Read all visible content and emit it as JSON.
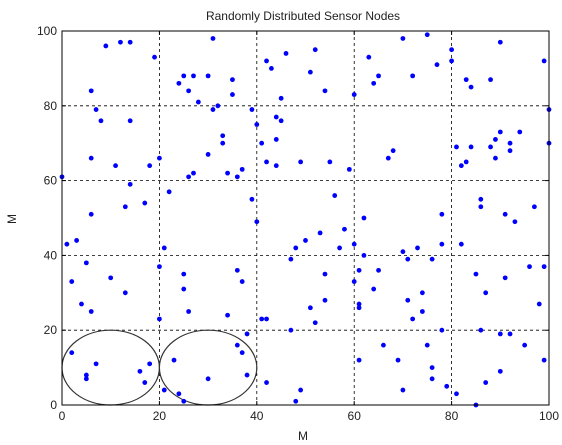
{
  "chart_data": {
    "type": "scatter",
    "title": "Randomly Distributed Sensor Nodes",
    "xlabel": "M",
    "ylabel": "M",
    "xlim": [
      0,
      100
    ],
    "ylim": [
      0,
      100
    ],
    "xticks": [
      0,
      20,
      40,
      60,
      80,
      100
    ],
    "yticks": [
      0,
      20,
      40,
      60,
      80,
      100
    ],
    "grid": true,
    "grid_style": "dashed",
    "marker_color": "#0000ff",
    "annotations": [
      {
        "shape": "circle",
        "cx": 10,
        "cy": 10,
        "r": 10,
        "stroke": "#333333"
      },
      {
        "shape": "circle",
        "cx": 30,
        "cy": 10,
        "r": 10,
        "stroke": "#333333"
      }
    ],
    "points": [
      [
        0,
        61
      ],
      [
        1,
        43
      ],
      [
        2,
        14
      ],
      [
        2,
        33
      ],
      [
        3,
        44
      ],
      [
        4,
        27
      ],
      [
        5,
        8
      ],
      [
        5,
        7
      ],
      [
        5,
        38
      ],
      [
        6,
        84
      ],
      [
        6,
        51
      ],
      [
        6,
        25
      ],
      [
        6,
        66
      ],
      [
        7,
        79
      ],
      [
        7,
        11
      ],
      [
        8,
        76
      ],
      [
        9,
        96
      ],
      [
        10,
        34
      ],
      [
        11,
        64
      ],
      [
        12,
        97
      ],
      [
        13,
        53
      ],
      [
        13,
        30
      ],
      [
        14,
        97
      ],
      [
        14,
        76
      ],
      [
        14,
        59
      ],
      [
        16,
        9
      ],
      [
        17,
        6
      ],
      [
        17,
        54
      ],
      [
        18,
        64
      ],
      [
        18,
        11
      ],
      [
        19,
        93
      ],
      [
        20,
        37
      ],
      [
        20,
        23
      ],
      [
        20,
        66
      ],
      [
        21,
        4
      ],
      [
        21,
        42
      ],
      [
        22,
        57
      ],
      [
        23,
        12
      ],
      [
        24,
        3
      ],
      [
        24,
        86
      ],
      [
        25,
        88
      ],
      [
        25,
        35
      ],
      [
        25,
        31
      ],
      [
        25,
        1
      ],
      [
        26,
        84
      ],
      [
        26,
        61
      ],
      [
        26,
        25
      ],
      [
        27,
        62
      ],
      [
        27,
        88
      ],
      [
        28,
        81
      ],
      [
        30,
        88
      ],
      [
        30,
        7
      ],
      [
        30,
        67
      ],
      [
        31,
        98
      ],
      [
        31,
        79
      ],
      [
        32,
        80
      ],
      [
        33,
        72
      ],
      [
        33,
        70
      ],
      [
        34,
        62
      ],
      [
        34,
        24
      ],
      [
        35,
        87
      ],
      [
        35,
        83
      ],
      [
        36,
        61
      ],
      [
        36,
        36
      ],
      [
        36,
        16
      ],
      [
        37,
        33
      ],
      [
        37,
        14
      ],
      [
        37,
        63
      ],
      [
        38,
        8
      ],
      [
        38,
        19
      ],
      [
        39,
        79
      ],
      [
        39,
        55
      ],
      [
        40,
        75
      ],
      [
        40,
        49
      ],
      [
        41,
        23
      ],
      [
        42,
        23
      ],
      [
        41,
        70
      ],
      [
        42,
        92
      ],
      [
        42,
        65
      ],
      [
        42,
        6
      ],
      [
        43,
        90
      ],
      [
        44,
        64
      ],
      [
        44,
        71
      ],
      [
        44,
        77
      ],
      [
        45,
        82
      ],
      [
        45,
        76
      ],
      [
        46,
        94
      ],
      [
        47,
        39
      ],
      [
        47,
        20
      ],
      [
        48,
        42
      ],
      [
        48,
        1
      ],
      [
        49,
        4
      ],
      [
        49,
        65
      ],
      [
        50,
        44
      ],
      [
        51,
        89
      ],
      [
        51,
        26
      ],
      [
        52,
        95
      ],
      [
        52,
        22
      ],
      [
        53,
        46
      ],
      [
        54,
        28
      ],
      [
        54,
        35
      ],
      [
        54,
        84
      ],
      [
        55,
        65
      ],
      [
        56,
        56
      ],
      [
        57,
        42
      ],
      [
        58,
        47
      ],
      [
        59,
        63
      ],
      [
        60,
        83
      ],
      [
        60,
        43
      ],
      [
        60,
        33
      ],
      [
        61,
        27
      ],
      [
        61,
        26
      ],
      [
        61,
        36
      ],
      [
        61,
        12
      ],
      [
        62,
        40
      ],
      [
        62,
        50
      ],
      [
        63,
        93
      ],
      [
        64,
        31
      ],
      [
        64,
        86
      ],
      [
        65,
        88
      ],
      [
        65,
        36
      ],
      [
        66,
        16
      ],
      [
        67,
        66
      ],
      [
        68,
        68
      ],
      [
        69,
        12
      ],
      [
        70,
        4
      ],
      [
        70,
        98
      ],
      [
        70,
        41
      ],
      [
        71,
        39
      ],
      [
        71,
        28
      ],
      [
        72,
        88
      ],
      [
        72,
        23
      ],
      [
        73,
        42
      ],
      [
        74,
        30
      ],
      [
        74,
        25
      ],
      [
        75,
        16
      ],
      [
        75,
        99
      ],
      [
        76,
        10
      ],
      [
        76,
        7
      ],
      [
        76,
        39
      ],
      [
        77,
        91
      ],
      [
        78,
        51
      ],
      [
        78,
        43
      ],
      [
        78,
        20
      ],
      [
        79,
        5
      ],
      [
        80,
        95
      ],
      [
        80,
        92
      ],
      [
        81,
        3
      ],
      [
        81,
        69
      ],
      [
        82,
        43
      ],
      [
        82,
        64
      ],
      [
        83,
        65
      ],
      [
        83,
        87
      ],
      [
        84,
        69
      ],
      [
        84,
        85
      ],
      [
        85,
        0
      ],
      [
        85,
        35
      ],
      [
        86,
        53
      ],
      [
        86,
        55
      ],
      [
        86,
        20
      ],
      [
        87,
        30
      ],
      [
        87,
        6
      ],
      [
        88,
        69
      ],
      [
        88,
        87
      ],
      [
        89,
        66
      ],
      [
        89,
        71
      ],
      [
        90,
        73
      ],
      [
        90,
        97
      ],
      [
        90,
        19
      ],
      [
        90,
        9
      ],
      [
        91,
        34
      ],
      [
        91,
        51
      ],
      [
        92,
        19
      ],
      [
        92,
        68
      ],
      [
        92,
        70
      ],
      [
        93,
        49
      ],
      [
        94,
        73
      ],
      [
        95,
        16
      ],
      [
        96,
        37
      ],
      [
        97,
        53
      ],
      [
        98,
        27
      ],
      [
        99,
        92
      ],
      [
        99,
        12
      ],
      [
        99,
        37
      ],
      [
        100,
        79
      ],
      [
        100,
        70
      ]
    ]
  }
}
